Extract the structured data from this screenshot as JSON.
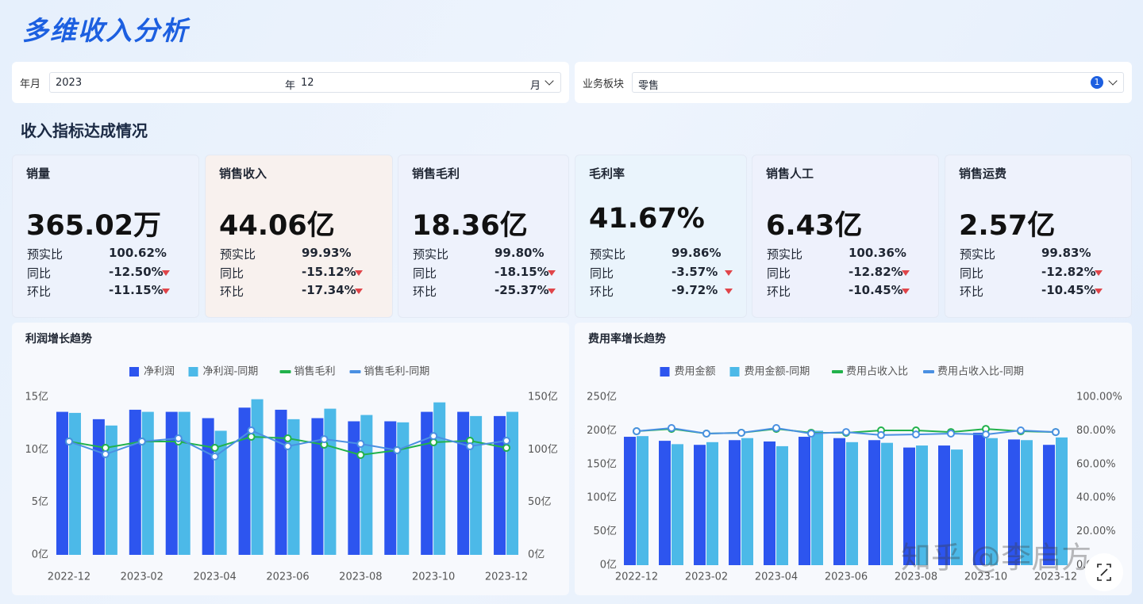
{
  "header": {
    "title": "多维收入分析"
  },
  "filters": [
    {
      "label": "年月",
      "year": "2023",
      "year_unit": "年",
      "month": "12",
      "month_unit": "月"
    },
    {
      "label": "业务板块",
      "value": "零售",
      "count": 1
    }
  ],
  "section_title": "收入指标达成情况",
  "kpis": [
    {
      "name": "销量",
      "value": "365.02万",
      "rows": [
        {
          "label": "预实比",
          "value": "100.62%"
        },
        {
          "label": "同比",
          "value": "-12.50%"
        },
        {
          "label": "环比",
          "value": "-11.15%"
        }
      ]
    },
    {
      "name": "销售收入",
      "value": "44.06亿",
      "rows": [
        {
          "label": "预实比",
          "value": "99.93%"
        },
        {
          "label": "同比",
          "value": "-15.12%"
        },
        {
          "label": "环比",
          "value": "-17.34%"
        }
      ]
    },
    {
      "name": "销售毛利",
      "value": "18.36亿",
      "rows": [
        {
          "label": "预实比",
          "value": "99.80%"
        },
        {
          "label": "同比",
          "value": "-18.15%"
        },
        {
          "label": "环比",
          "value": "-25.37%"
        }
      ]
    },
    {
      "name": "毛利率",
      "value": "41.67%",
      "rows": [
        {
          "label": "预实比",
          "value": "99.86%"
        },
        {
          "label": "同比",
          "value": "-3.57%"
        },
        {
          "label": "环比",
          "value": "-9.72%"
        }
      ]
    },
    {
      "name": "销售人工",
      "value": "6.43亿",
      "rows": [
        {
          "label": "预实比",
          "value": "100.36%"
        },
        {
          "label": "同比",
          "value": "-12.82%"
        },
        {
          "label": "环比",
          "value": "-10.45%"
        }
      ]
    },
    {
      "name": "销售运费",
      "value": "2.57亿",
      "rows": [
        {
          "label": "预实比",
          "value": "99.83%"
        },
        {
          "label": "同比",
          "value": "-12.82%"
        },
        {
          "label": "环比",
          "value": "-10.45%"
        }
      ]
    }
  ],
  "chart_data": [
    {
      "type": "combo",
      "title": "利润增长趋势",
      "categories": [
        "2022-12",
        null,
        "2023-02",
        null,
        "2023-04",
        null,
        "2023-06",
        null,
        "2023-08",
        null,
        "2023-10",
        null,
        "2023-12"
      ],
      "ylim": [
        0,
        15
      ],
      "yticks": [
        {
          "value": 0,
          "label": "0亿"
        },
        {
          "value": 5,
          "label": "5亿"
        },
        {
          "value": 10,
          "label": "10亿"
        },
        {
          "value": 15,
          "label": "15亿"
        }
      ],
      "y2lim": [
        0,
        150
      ],
      "y2ticks": [
        {
          "value": 0,
          "label": "0亿"
        },
        {
          "value": 50,
          "label": "50亿"
        },
        {
          "value": 100,
          "label": "100亿"
        },
        {
          "value": 150,
          "label": "150亿"
        }
      ],
      "series": [
        {
          "name": "净利润",
          "type": "bar",
          "color": "#2d55ef",
          "values": [
            13.6,
            12.9,
            13.8,
            13.6,
            13.0,
            14.0,
            13.8,
            13.0,
            12.7,
            12.7,
            13.6,
            13.6,
            13.2
          ]
        },
        {
          "name": "净利润-同期",
          "type": "bar",
          "color": "#4cb9e8",
          "values": [
            13.5,
            12.3,
            13.6,
            13.6,
            11.8,
            14.8,
            12.9,
            13.9,
            13.3,
            12.6,
            14.5,
            13.2,
            13.6
          ]
        },
        {
          "name": "销售毛利",
          "type": "line",
          "axis": "y2",
          "color": "#22b24c",
          "values": [
            107.8,
            101.8,
            107.8,
            107.8,
            101.8,
            112.3,
            110.8,
            104.8,
            95.0,
            99.5,
            107.0,
            108.5,
            101.8
          ]
        },
        {
          "name": "销售毛利-同期",
          "type": "line",
          "axis": "y2",
          "color": "#4a90e2",
          "values": [
            107.8,
            95.7,
            107.8,
            110.8,
            93.5,
            118.3,
            103.3,
            110.0,
            105.5,
            99.5,
            113.0,
            103.3,
            108.5
          ]
        }
      ]
    },
    {
      "type": "combo",
      "title": "费用率增长趋势",
      "categories": [
        "2022-12",
        null,
        "2023-02",
        null,
        "2023-04",
        null,
        "2023-06",
        null,
        "2023-08",
        null,
        "2023-10",
        null,
        "2023-12"
      ],
      "ylim": [
        0,
        250
      ],
      "yticks": [
        {
          "value": 0,
          "label": "0亿"
        },
        {
          "value": 50,
          "label": "50亿"
        },
        {
          "value": 100,
          "label": "100亿"
        },
        {
          "value": 150,
          "label": "150亿"
        },
        {
          "value": 200,
          "label": "200亿"
        },
        {
          "value": 250,
          "label": "250亿"
        }
      ],
      "y2lim": [
        0,
        100
      ],
      "y2ticks": [
        {
          "value": 0,
          "label": "0.00%"
        },
        {
          "value": 20,
          "label": "20.00%"
        },
        {
          "value": 40,
          "label": "40.00%"
        },
        {
          "value": 60,
          "label": "60.00%"
        },
        {
          "value": 80,
          "label": "80.00%"
        },
        {
          "value": 100,
          "label": "100.00%"
        }
      ],
      "series": [
        {
          "name": "费用金额",
          "type": "bar",
          "color": "#2d55ef",
          "values": [
            191,
            185,
            179,
            186,
            184,
            191,
            189,
            186,
            175,
            178,
            197,
            187,
            179
          ]
        },
        {
          "name": "费用金额-同期",
          "type": "bar",
          "color": "#4cb9e8",
          "values": [
            192,
            180,
            183,
            189,
            177,
            200,
            183,
            182,
            178,
            172,
            189,
            186,
            190
          ]
        },
        {
          "name": "费用占收入比",
          "type": "line",
          "axis": "y2",
          "color": "#22b24c",
          "values": [
            79.7,
            81.1,
            78.3,
            78.8,
            81.1,
            78.8,
            78.8,
            80.2,
            80.2,
            79.2,
            81.1,
            79.7,
            79.2
          ]
        },
        {
          "name": "费用占收入比-同期",
          "type": "line",
          "axis": "y2",
          "color": "#4a90e2",
          "values": [
            79.7,
            81.6,
            78.3,
            78.8,
            81.6,
            78.3,
            79.2,
            77.4,
            77.8,
            78.3,
            77.8,
            80.2,
            79.2
          ]
        }
      ]
    }
  ],
  "watermark": "知乎 @李启方"
}
